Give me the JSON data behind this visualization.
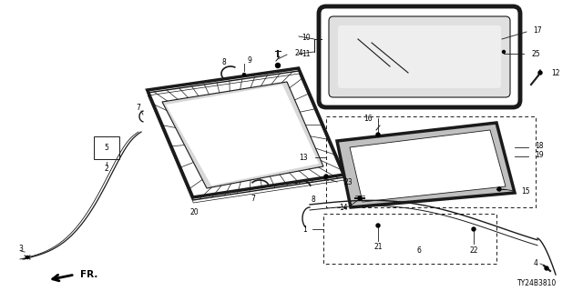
{
  "bg_color": "#ffffff",
  "watermark": "TY24B3810",
  "fr_label": "FR.",
  "line_color": "#1a1a1a",
  "label_fs": 5.5
}
